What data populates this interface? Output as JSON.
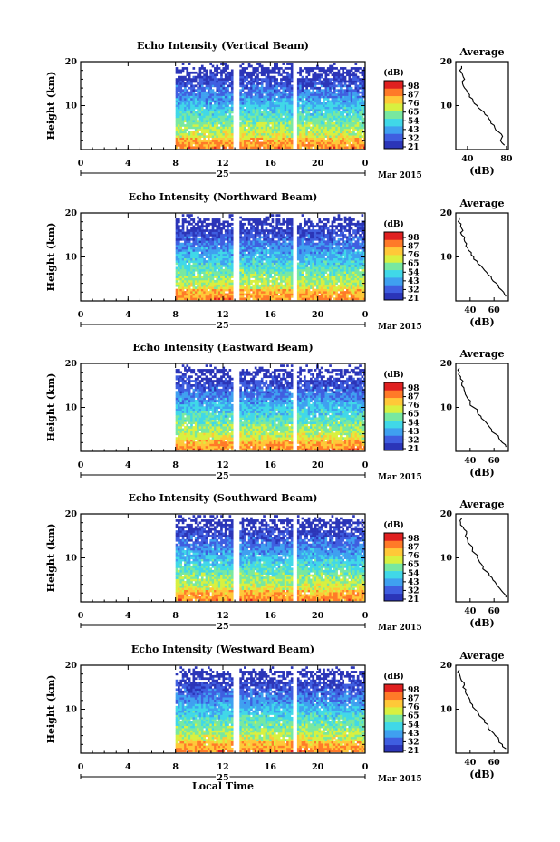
{
  "colormap": [
    "#2b35b8",
    "#3f5ee0",
    "#3fa0f0",
    "#40d8e8",
    "#78e8a0",
    "#d8f040",
    "#ffc838",
    "#ff7a28",
    "#e02020"
  ],
  "chart_data": [
    {
      "type": "heatmap",
      "title": "Echo Intensity (Vertical Beam)",
      "ylabel": "Height (km)",
      "ylim": [
        0,
        20
      ],
      "yticks": [
        "20",
        "10"
      ],
      "xticks": [
        "0",
        "4",
        "8",
        "12",
        "16",
        "20",
        "0"
      ],
      "day_label": "25",
      "month_label": "Mar 2015",
      "colorbar_unit": "(dB)",
      "colorbar_ticks": [
        "98",
        "87",
        "76",
        "65",
        "54",
        "43",
        "32",
        "21"
      ],
      "data_start_hour": 8,
      "gap_hours": [
        [
          12.8,
          13.3
        ],
        [
          17.8,
          18.2
        ]
      ],
      "profile": {
        "title": "Average",
        "xlabel": "(dB)",
        "xticks": [
          "40",
          "80"
        ],
        "xlim": [
          28,
          82
        ],
        "ylim": [
          0,
          20
        ],
        "yticks": [
          "20",
          "10"
        ],
        "heights_km": [
          1,
          2,
          3,
          4,
          5,
          6,
          7,
          8,
          9,
          10,
          11,
          12,
          13,
          14,
          15,
          16,
          17,
          18,
          19
        ],
        "values_db": [
          78,
          74,
          76,
          72,
          68,
          64,
          62,
          58,
          54,
          50,
          46,
          42,
          40,
          37,
          35,
          37,
          35,
          32,
          34
        ]
      }
    },
    {
      "type": "heatmap",
      "title": "Echo Intensity (Northward Beam)",
      "ylabel": "Height (km)",
      "ylim": [
        0,
        20
      ],
      "yticks": [
        "20",
        "10"
      ],
      "xticks": [
        "0",
        "4",
        "8",
        "12",
        "16",
        "20",
        "0"
      ],
      "day_label": "25",
      "month_label": "Mar 2015",
      "colorbar_unit": "(dB)",
      "colorbar_ticks": [
        "98",
        "87",
        "76",
        "65",
        "54",
        "43",
        "32",
        "21"
      ],
      "data_start_hour": 8,
      "gap_hours": [
        [
          12.8,
          13.3
        ],
        [
          17.8,
          18.2
        ]
      ],
      "profile": {
        "title": "Average",
        "xlabel": "(dB)",
        "xticks": [
          "40",
          "60"
        ],
        "xlim": [
          28,
          72
        ],
        "ylim": [
          0,
          20
        ],
        "yticks": [
          "20",
          "10"
        ],
        "heights_km": [
          1,
          2,
          3,
          4,
          5,
          6,
          7,
          8,
          9,
          10,
          11,
          12,
          13,
          14,
          15,
          16,
          17,
          18,
          19
        ],
        "values_db": [
          70,
          68,
          64,
          62,
          58,
          55,
          52,
          49,
          46,
          43,
          41,
          38,
          37,
          35,
          33,
          34,
          32,
          30,
          31
        ]
      }
    },
    {
      "type": "heatmap",
      "title": "Echo Intensity (Eastward Beam)",
      "ylabel": "Height (km)",
      "ylim": [
        0,
        20
      ],
      "yticks": [
        "20",
        "10"
      ],
      "xticks": [
        "0",
        "4",
        "8",
        "12",
        "16",
        "20",
        "0"
      ],
      "day_label": "25",
      "month_label": "Mar 2015",
      "colorbar_unit": "(dB)",
      "colorbar_ticks": [
        "98",
        "87",
        "76",
        "65",
        "54",
        "43",
        "32",
        "21"
      ],
      "data_start_hour": 8,
      "gap_hours": [
        [
          12.8,
          13.3
        ],
        [
          17.8,
          18.2
        ]
      ],
      "profile": {
        "title": "Average",
        "xlabel": "(dB)",
        "xticks": [
          "40",
          "60"
        ],
        "xlim": [
          28,
          72
        ],
        "ylim": [
          0,
          20
        ],
        "yticks": [
          "20",
          "10"
        ],
        "heights_km": [
          1,
          2,
          3,
          4,
          5,
          6,
          7,
          8,
          9,
          10,
          11,
          12,
          13,
          14,
          15,
          16,
          17,
          18,
          19
        ],
        "values_db": [
          70,
          67,
          64,
          61,
          58,
          55,
          52,
          49,
          46,
          43,
          40,
          38,
          36,
          35,
          33,
          34,
          32,
          31,
          31
        ]
      }
    },
    {
      "type": "heatmap",
      "title": "Echo Intensity (Southward Beam)",
      "ylabel": "Height (km)",
      "ylim": [
        0,
        20
      ],
      "yticks": [
        "20",
        "10"
      ],
      "xticks": [
        "0",
        "4",
        "8",
        "12",
        "16",
        "20",
        "0"
      ],
      "day_label": "25",
      "month_label": "Mar 2015",
      "colorbar_unit": "(dB)",
      "colorbar_ticks": [
        "98",
        "87",
        "76",
        "65",
        "54",
        "43",
        "32",
        "21"
      ],
      "data_start_hour": 8,
      "gap_hours": [
        [
          12.8,
          13.3
        ],
        [
          17.8,
          18.2
        ]
      ],
      "profile": {
        "title": "Average",
        "xlabel": "(dB)",
        "xticks": [
          "40",
          "60"
        ],
        "xlim": [
          28,
          72
        ],
        "ylim": [
          0,
          20
        ],
        "yticks": [
          "20",
          "10"
        ],
        "heights_km": [
          1,
          2,
          3,
          4,
          5,
          6,
          7,
          8,
          9,
          10,
          11,
          12,
          13,
          14,
          15,
          16,
          17,
          18,
          19
        ],
        "values_db": [
          70,
          68,
          65,
          62,
          59,
          56,
          53,
          51,
          48,
          46,
          44,
          42,
          40,
          38,
          36,
          37,
          34,
          32,
          33
        ]
      }
    },
    {
      "type": "heatmap",
      "title": "Echo Intensity (Westward Beam)",
      "ylabel": "Height (km)",
      "ylim": [
        0,
        20
      ],
      "yticks": [
        "20",
        "10"
      ],
      "xticks": [
        "0",
        "4",
        "8",
        "12",
        "16",
        "20",
        "0"
      ],
      "day_label": "25",
      "month_label": "Mar 2015",
      "colorbar_unit": "(dB)",
      "colorbar_ticks": [
        "98",
        "87",
        "76",
        "65",
        "54",
        "43",
        "32",
        "21"
      ],
      "data_start_hour": 8,
      "gap_hours": [
        [
          12.8,
          13.3
        ],
        [
          17.8,
          18.2
        ]
      ],
      "xlabel": "Local Time",
      "profile": {
        "title": "Average",
        "xlabel": "(dB)",
        "xticks": [
          "40",
          "60"
        ],
        "xlim": [
          28,
          72
        ],
        "ylim": [
          0,
          20
        ],
        "yticks": [
          "20",
          "10"
        ],
        "heights_km": [
          1,
          2,
          3,
          4,
          5,
          6,
          7,
          8,
          9,
          10,
          11,
          12,
          13,
          14,
          15,
          16,
          17,
          18,
          19
        ],
        "values_db": [
          70,
          67,
          64,
          61,
          58,
          55,
          52,
          50,
          47,
          44,
          42,
          40,
          38,
          36,
          34,
          35,
          32,
          31,
          31
        ]
      }
    }
  ]
}
